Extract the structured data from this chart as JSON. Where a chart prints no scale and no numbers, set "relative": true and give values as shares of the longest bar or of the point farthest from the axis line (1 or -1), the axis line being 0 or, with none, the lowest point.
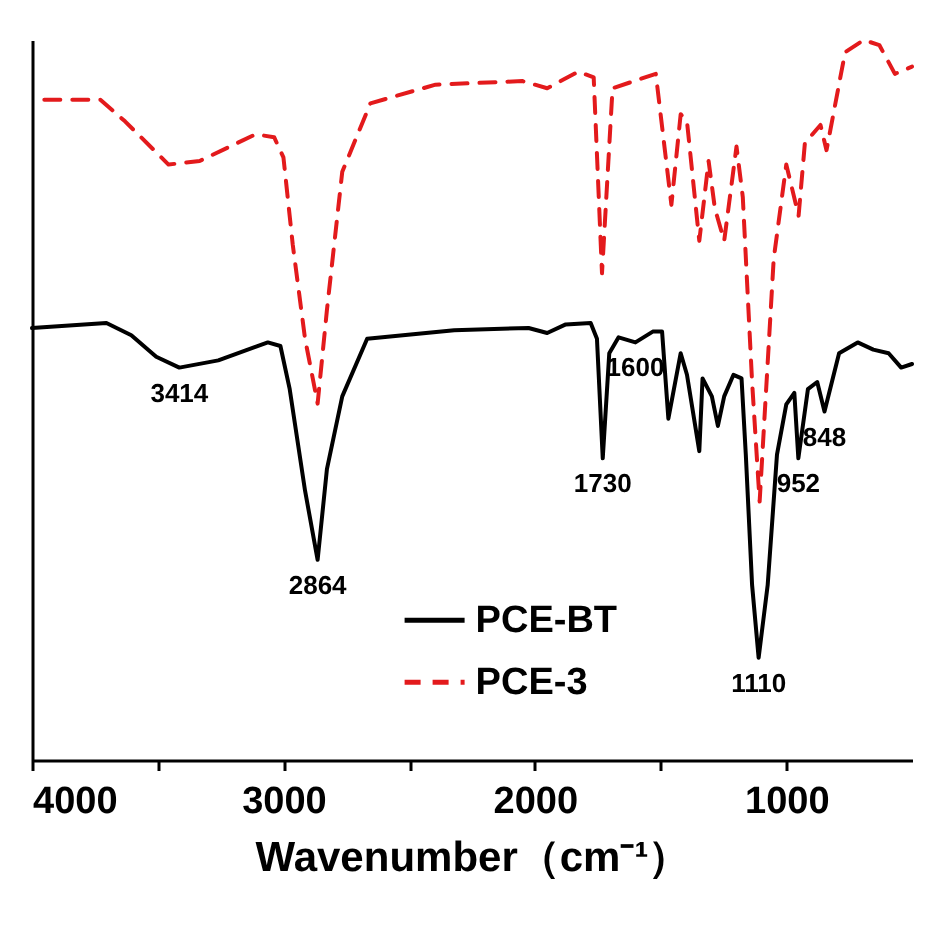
{
  "chart_data": {
    "type": "line",
    "relative": true,
    "xlabel": "Wavenumber（cm⁻¹）",
    "xlim": [
      4000,
      500
    ],
    "xticks": [
      4000,
      {
        "value": 3500,
        "label": null
      },
      3000,
      {
        "value": 2500,
        "label": null
      },
      2000,
      {
        "value": 1500,
        "label": null
      },
      1000
    ],
    "grid": false,
    "legend": "bottom",
    "marker": "none",
    "series": [
      {
        "name": "PCE-BT",
        "color": "#000000",
        "line_style": "solid",
        "x": [
          4000,
          3704,
          3605,
          3506,
          3414,
          3259,
          3062,
          3012,
          2975,
          2914,
          2864,
          2827,
          2766,
          2667,
          2321,
          2025,
          1951,
          1877,
          1778,
          1753,
          1730,
          1704,
          1667,
          1600,
          1531,
          1494,
          1469,
          1420,
          1395,
          1346,
          1333,
          1296,
          1272,
          1247,
          1210,
          1178,
          1161,
          1136,
          1110,
          1074,
          1037,
          1000,
          968,
          952,
          914,
          877,
          848,
          790,
          716,
          654,
          593,
          543,
          500
        ],
        "values": [
          0.6,
          0.607,
          0.59,
          0.56,
          0.545,
          0.555,
          0.58,
          0.575,
          0.515,
          0.374,
          0.278,
          0.404,
          0.505,
          0.585,
          0.597,
          0.6,
          0.593,
          0.605,
          0.607,
          0.585,
          0.419,
          0.565,
          0.587,
          0.58,
          0.595,
          0.595,
          0.474,
          0.565,
          0.535,
          0.429,
          0.53,
          0.505,
          0.464,
          0.505,
          0.535,
          0.53,
          0.424,
          0.243,
          0.142,
          0.243,
          0.424,
          0.494,
          0.51,
          0.419,
          0.515,
          0.525,
          0.484,
          0.565,
          0.58,
          0.57,
          0.565,
          0.545,
          0.55
        ]
      },
      {
        "name": "PCE-3",
        "color": "#e31a1c",
        "line_style": "dashed",
        "x": [
          3951,
          3728,
          3630,
          3457,
          3333,
          3111,
          3037,
          3000,
          2963,
          2914,
          2864,
          2827,
          2766,
          2654,
          2395,
          2050,
          1951,
          1827,
          1766,
          1733,
          1691,
          1519,
          1457,
          1420,
          1395,
          1346,
          1309,
          1284,
          1247,
          1198,
          1173,
          1136,
          1106,
          1050,
          1000,
          951,
          926,
          864,
          840,
          766,
          692,
          630,
          568,
          500
        ],
        "values": [
          0.917,
          0.917,
          0.887,
          0.827,
          0.832,
          0.869,
          0.865,
          0.837,
          0.716,
          0.585,
          0.495,
          0.625,
          0.817,
          0.912,
          0.938,
          0.943,
          0.933,
          0.956,
          0.948,
          0.676,
          0.933,
          0.953,
          0.771,
          0.897,
          0.887,
          0.721,
          0.832,
          0.766,
          0.721,
          0.852,
          0.782,
          0.525,
          0.359,
          0.696,
          0.827,
          0.756,
          0.857,
          0.882,
          0.847,
          0.983,
          1.0,
          0.993,
          0.953,
          0.963
        ]
      }
    ],
    "annotations": [
      {
        "text": "3414",
        "x": 3414,
        "y": 0.545
      },
      {
        "text": "2864",
        "x": 2864,
        "y": 0.278
      },
      {
        "text": "1730",
        "x": 1730,
        "y": 0.419
      },
      {
        "text": "1600",
        "x": 1600,
        "y": 0.58
      },
      {
        "text": "1110",
        "x": 1110,
        "y": 0.142
      },
      {
        "text": "952",
        "x": 952,
        "y": 0.419
      },
      {
        "text": "848",
        "x": 848,
        "y": 0.484
      }
    ]
  }
}
